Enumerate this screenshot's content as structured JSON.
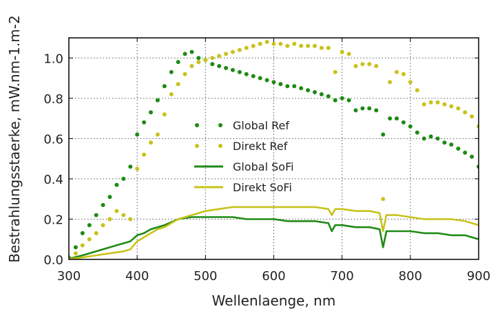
{
  "chart_data": {
    "type": "line",
    "title": "",
    "xlabel": "Wellenlaenge, nm",
    "ylabel": "Bestrahlungsstaerke, mW.nm-1.m-2",
    "xlim": [
      300,
      900
    ],
    "ylim": [
      0.0,
      1.1
    ],
    "xticks": [
      300,
      400,
      500,
      600,
      700,
      800,
      900
    ],
    "yticks": [
      0.0,
      0.2,
      0.4,
      0.6,
      0.8,
      1.0
    ],
    "xtick_labels": [
      "300",
      "400",
      "500",
      "600",
      "700",
      "800",
      "900"
    ],
    "ytick_labels": [
      "0.0",
      "0.2",
      "0.4",
      "0.6",
      "0.8",
      "1.0"
    ],
    "grid": true,
    "legend_position": "center",
    "series": [
      {
        "name": "Global Ref",
        "style": "dots",
        "color": "#1e8a14",
        "points": [
          [
            300,
            0.01
          ],
          [
            310,
            0.06
          ],
          [
            320,
            0.13
          ],
          [
            330,
            0.17
          ],
          [
            340,
            0.22
          ],
          [
            350,
            0.27
          ],
          [
            360,
            0.31
          ],
          [
            370,
            0.37
          ],
          [
            380,
            0.4
          ],
          [
            390,
            0.46
          ],
          [
            400,
            0.62
          ],
          [
            410,
            0.68
          ],
          [
            420,
            0.73
          ],
          [
            430,
            0.79
          ],
          [
            440,
            0.86
          ],
          [
            450,
            0.93
          ],
          [
            460,
            0.98
          ],
          [
            470,
            1.02
          ],
          [
            480,
            1.03
          ],
          [
            490,
            1.0
          ],
          [
            500,
            0.99
          ],
          [
            510,
            0.97
          ],
          [
            520,
            0.96
          ],
          [
            530,
            0.95
          ],
          [
            540,
            0.94
          ],
          [
            550,
            0.93
          ],
          [
            560,
            0.92
          ],
          [
            570,
            0.91
          ],
          [
            580,
            0.9
          ],
          [
            590,
            0.89
          ],
          [
            600,
            0.88
          ],
          [
            610,
            0.87
          ],
          [
            620,
            0.86
          ],
          [
            630,
            0.86
          ],
          [
            640,
            0.85
          ],
          [
            650,
            0.84
          ],
          [
            660,
            0.83
          ],
          [
            670,
            0.82
          ],
          [
            680,
            0.81
          ],
          [
            690,
            0.79
          ],
          [
            700,
            0.8
          ],
          [
            710,
            0.79
          ],
          [
            720,
            0.74
          ],
          [
            730,
            0.75
          ],
          [
            740,
            0.75
          ],
          [
            750,
            0.74
          ],
          [
            760,
            0.62
          ],
          [
            770,
            0.7
          ],
          [
            780,
            0.7
          ],
          [
            790,
            0.68
          ],
          [
            800,
            0.66
          ],
          [
            810,
            0.63
          ],
          [
            820,
            0.6
          ],
          [
            830,
            0.61
          ],
          [
            840,
            0.6
          ],
          [
            850,
            0.58
          ],
          [
            860,
            0.57
          ],
          [
            870,
            0.55
          ],
          [
            880,
            0.53
          ],
          [
            890,
            0.51
          ],
          [
            900,
            0.46
          ]
        ]
      },
      {
        "name": "Direkt Ref",
        "style": "dots",
        "color": "#c8c21a",
        "points": [
          [
            300,
            0.005
          ],
          [
            310,
            0.03
          ],
          [
            320,
            0.07
          ],
          [
            330,
            0.1
          ],
          [
            340,
            0.13
          ],
          [
            350,
            0.17
          ],
          [
            360,
            0.2
          ],
          [
            370,
            0.24
          ],
          [
            380,
            0.22
          ],
          [
            390,
            0.2
          ],
          [
            400,
            0.45
          ],
          [
            410,
            0.52
          ],
          [
            420,
            0.58
          ],
          [
            430,
            0.62
          ],
          [
            440,
            0.72
          ],
          [
            450,
            0.82
          ],
          [
            460,
            0.87
          ],
          [
            470,
            0.92
          ],
          [
            480,
            0.96
          ],
          [
            490,
            0.98
          ],
          [
            500,
            0.99
          ],
          [
            510,
            1.0
          ],
          [
            520,
            1.01
          ],
          [
            530,
            1.02
          ],
          [
            540,
            1.03
          ],
          [
            550,
            1.04
          ],
          [
            560,
            1.05
          ],
          [
            570,
            1.06
          ],
          [
            580,
            1.07
          ],
          [
            590,
            1.08
          ],
          [
            600,
            1.07
          ],
          [
            610,
            1.07
          ],
          [
            620,
            1.06
          ],
          [
            630,
            1.07
          ],
          [
            640,
            1.06
          ],
          [
            650,
            1.06
          ],
          [
            660,
            1.06
          ],
          [
            670,
            1.05
          ],
          [
            680,
            1.05
          ],
          [
            690,
            0.93
          ],
          [
            700,
            1.03
          ],
          [
            710,
            1.02
          ],
          [
            720,
            0.96
          ],
          [
            730,
            0.97
          ],
          [
            740,
            0.97
          ],
          [
            750,
            0.96
          ],
          [
            760,
            0.3
          ],
          [
            770,
            0.88
          ],
          [
            780,
            0.93
          ],
          [
            790,
            0.92
          ],
          [
            800,
            0.88
          ],
          [
            810,
            0.84
          ],
          [
            820,
            0.77
          ],
          [
            830,
            0.78
          ],
          [
            840,
            0.78
          ],
          [
            850,
            0.77
          ],
          [
            860,
            0.76
          ],
          [
            870,
            0.75
          ],
          [
            880,
            0.73
          ],
          [
            890,
            0.71
          ],
          [
            900,
            0.66
          ]
        ]
      },
      {
        "name": "Global SoFi",
        "style": "line",
        "color": "#1e8a14",
        "points": [
          [
            300,
            0.003
          ],
          [
            320,
            0.02
          ],
          [
            340,
            0.04
          ],
          [
            360,
            0.06
          ],
          [
            380,
            0.08
          ],
          [
            390,
            0.09
          ],
          [
            400,
            0.12
          ],
          [
            410,
            0.13
          ],
          [
            420,
            0.15
          ],
          [
            430,
            0.16
          ],
          [
            440,
            0.17
          ],
          [
            460,
            0.2
          ],
          [
            480,
            0.21
          ],
          [
            500,
            0.21
          ],
          [
            520,
            0.21
          ],
          [
            540,
            0.21
          ],
          [
            560,
            0.2
          ],
          [
            580,
            0.2
          ],
          [
            600,
            0.2
          ],
          [
            620,
            0.19
          ],
          [
            640,
            0.19
          ],
          [
            660,
            0.19
          ],
          [
            680,
            0.18
          ],
          [
            685,
            0.14
          ],
          [
            690,
            0.17
          ],
          [
            700,
            0.17
          ],
          [
            720,
            0.16
          ],
          [
            740,
            0.16
          ],
          [
            755,
            0.15
          ],
          [
            760,
            0.06
          ],
          [
            765,
            0.14
          ],
          [
            780,
            0.14
          ],
          [
            800,
            0.14
          ],
          [
            820,
            0.13
          ],
          [
            840,
            0.13
          ],
          [
            860,
            0.12
          ],
          [
            880,
            0.12
          ],
          [
            900,
            0.1
          ]
        ]
      },
      {
        "name": "Direkt SoFi",
        "style": "line",
        "color": "#c8c21a",
        "points": [
          [
            300,
            0.001
          ],
          [
            320,
            0.01
          ],
          [
            340,
            0.02
          ],
          [
            360,
            0.03
          ],
          [
            380,
            0.04
          ],
          [
            390,
            0.05
          ],
          [
            400,
            0.09
          ],
          [
            410,
            0.11
          ],
          [
            420,
            0.13
          ],
          [
            430,
            0.15
          ],
          [
            440,
            0.16
          ],
          [
            460,
            0.2
          ],
          [
            480,
            0.22
          ],
          [
            500,
            0.24
          ],
          [
            520,
            0.25
          ],
          [
            540,
            0.26
          ],
          [
            560,
            0.26
          ],
          [
            580,
            0.26
          ],
          [
            600,
            0.26
          ],
          [
            620,
            0.26
          ],
          [
            640,
            0.26
          ],
          [
            660,
            0.26
          ],
          [
            680,
            0.25
          ],
          [
            685,
            0.22
          ],
          [
            690,
            0.25
          ],
          [
            700,
            0.25
          ],
          [
            720,
            0.24
          ],
          [
            740,
            0.24
          ],
          [
            755,
            0.23
          ],
          [
            760,
            0.14
          ],
          [
            765,
            0.22
          ],
          [
            780,
            0.22
          ],
          [
            800,
            0.21
          ],
          [
            820,
            0.2
          ],
          [
            840,
            0.2
          ],
          [
            860,
            0.2
          ],
          [
            880,
            0.19
          ],
          [
            900,
            0.17
          ]
        ]
      }
    ]
  }
}
